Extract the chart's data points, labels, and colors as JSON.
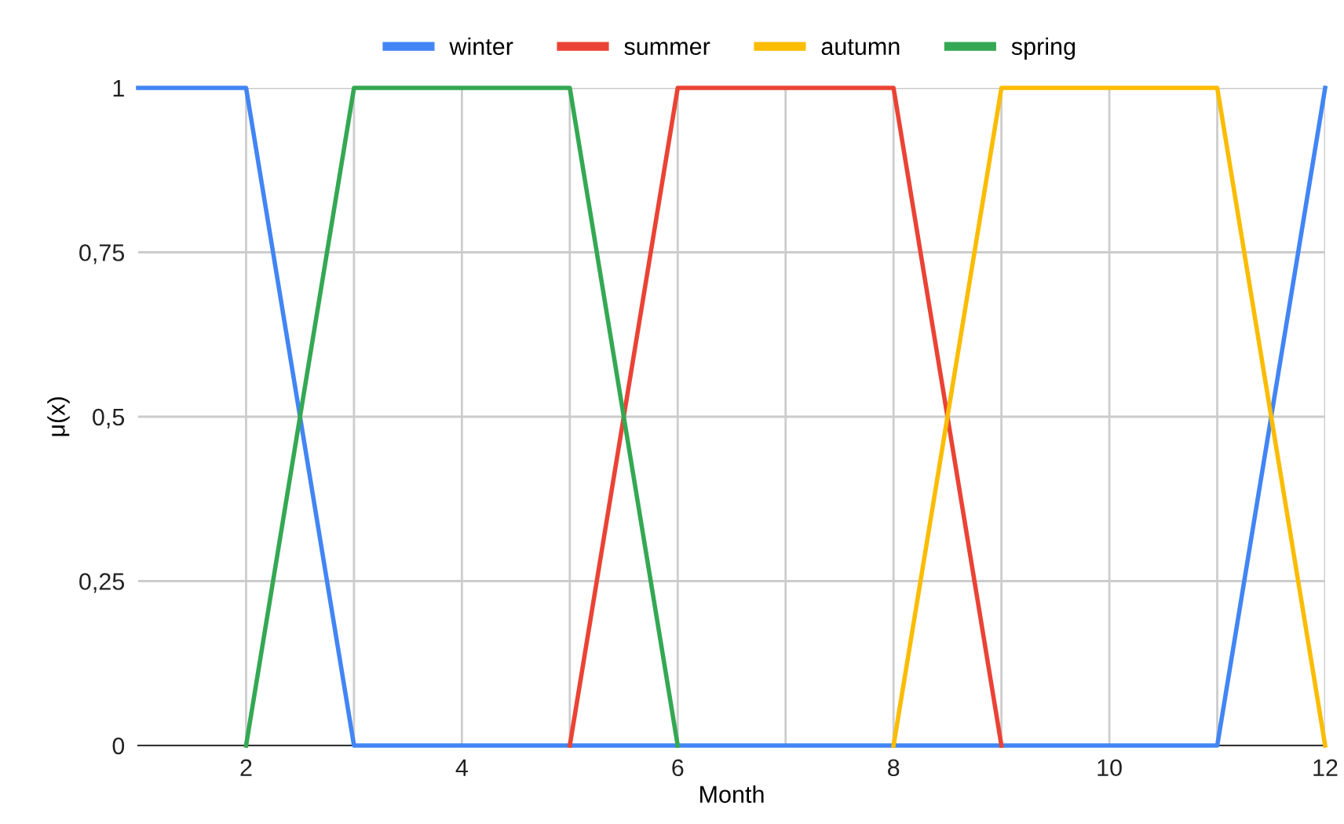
{
  "chart_data": {
    "type": "line",
    "xlabel": "Month",
    "ylabel": "μ(x)",
    "xlim": [
      1,
      12
    ],
    "xticks": [
      2,
      {
        "value": 3,
        "label": null
      },
      4,
      {
        "value": 5,
        "label": null
      },
      6,
      {
        "value": 7,
        "label": null
      },
      8,
      {
        "value": 9,
        "label": null
      },
      10,
      {
        "value": 11,
        "label": null
      },
      12
    ],
    "ylim": [
      0,
      1
    ],
    "yticks": [
      0,
      {
        "value": 0.25,
        "label": "0,25"
      },
      {
        "value": 0.5,
        "label": "0,5"
      },
      {
        "value": 0.75,
        "label": "0,75"
      },
      1
    ],
    "grid": true,
    "legend": "top",
    "marker": "none",
    "line_style": "solid",
    "series": [
      {
        "name": "winter",
        "color": "#4285f4",
        "x": [
          1,
          2,
          3,
          11,
          12
        ],
        "values": [
          1,
          1,
          0,
          0,
          1
        ]
      },
      {
        "name": "summer",
        "color": "#ea4335",
        "x": [
          5,
          6,
          8,
          9
        ],
        "values": [
          0,
          1,
          1,
          0
        ]
      },
      {
        "name": "autumn",
        "color": "#fbbc04",
        "x": [
          8,
          9,
          11,
          12
        ],
        "values": [
          0,
          1,
          1,
          0
        ]
      },
      {
        "name": "spring",
        "color": "#34a853",
        "x": [
          2,
          3,
          5,
          6
        ],
        "values": [
          0,
          1,
          1,
          0
        ]
      }
    ]
  }
}
